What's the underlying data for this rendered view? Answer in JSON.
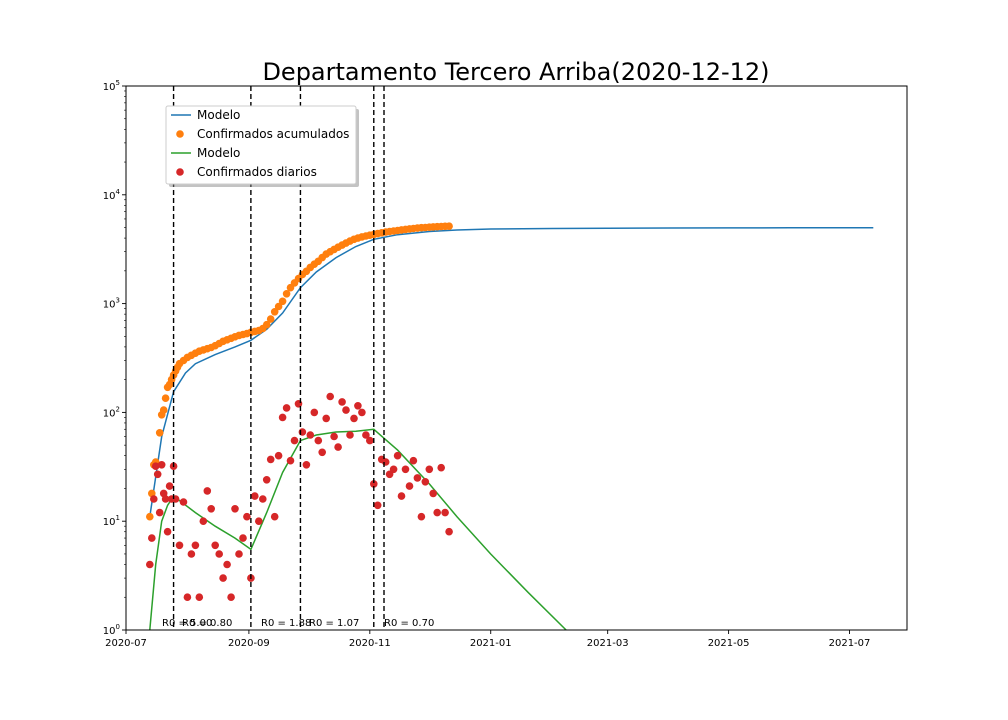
{
  "chart_data": {
    "type": "scatter",
    "title": "Departamento Tercero Arriba(2020-12-12)",
    "xlabel": "",
    "ylabel": "",
    "y_scale": "log",
    "ylim": [
      1,
      100000
    ],
    "xlim": [
      "2020-07-01",
      "2021-07-30"
    ],
    "x_tick_labels": [
      "2020-07",
      "2020-09",
      "2020-11",
      "2021-01",
      "2021-03",
      "2021-05",
      "2021-07"
    ],
    "x_tick_dates": [
      "2020-07-01",
      "2020-09-01",
      "2020-11-01",
      "2021-01-01",
      "2021-03-01",
      "2021-05-01",
      "2021-07-01"
    ],
    "y_tick_values": [
      1,
      10,
      100,
      1000,
      10000,
      100000
    ],
    "y_tick_labels": [
      {
        "base": "10",
        "exp": "0"
      },
      {
        "base": "10",
        "exp": "1"
      },
      {
        "base": "10",
        "exp": "2"
      },
      {
        "base": "10",
        "exp": "3"
      },
      {
        "base": "10",
        "exp": "4"
      },
      {
        "base": "10",
        "exp": "5"
      }
    ],
    "grid": false,
    "legend_position": "upper-left",
    "vlines": [
      {
        "x": "2020-07-25",
        "label": "R0 = 5.00"
      },
      {
        "x": "2020-09-02",
        "label": "R0 = 0.80"
      },
      {
        "x": "2020-09-27",
        "label": "R0 = 1.88"
      },
      {
        "x": "2020-11-03",
        "label": "R0 = 1.07"
      },
      {
        "x": "",
        "label": "R0 = 0.70"
      }
    ],
    "series": [
      {
        "name": "Modelo",
        "kind": "line",
        "color": "#1f77b4",
        "x": [
          "2020-07-13",
          "2020-07-19",
          "2020-07-25",
          "2020-07-31",
          "2020-08-05",
          "2020-08-15",
          "2020-08-25",
          "2020-09-02",
          "2020-09-10",
          "2020-09-18",
          "2020-09-27",
          "2020-10-05",
          "2020-10-15",
          "2020-10-25",
          "2020-11-03",
          "2020-11-15",
          "2020-12-01",
          "2020-12-15",
          "2021-01-01",
          "2021-02-01",
          "2021-03-01",
          "2021-04-01",
          "2021-05-01",
          "2021-06-01",
          "2021-07-13"
        ],
        "y": [
          11,
          60,
          155,
          230,
          280,
          340,
          400,
          460,
          580,
          820,
          1400,
          1950,
          2650,
          3350,
          3900,
          4300,
          4600,
          4750,
          4850,
          4900,
          4930,
          4950,
          4960,
          4970,
          4975
        ]
      },
      {
        "name": "Confirmados acumulados",
        "kind": "scatter",
        "color": "#ff7f0e",
        "x": [
          "2020-07-13",
          "2020-07-14",
          "2020-07-15",
          "2020-07-16",
          "2020-07-18",
          "2020-07-19",
          "2020-07-20",
          "2020-07-21",
          "2020-07-22",
          "2020-07-23",
          "2020-07-24",
          "2020-07-25",
          "2020-07-26",
          "2020-07-27",
          "2020-07-28",
          "2020-07-30",
          "2020-08-01",
          "2020-08-03",
          "2020-08-05",
          "2020-08-07",
          "2020-08-09",
          "2020-08-11",
          "2020-08-13",
          "2020-08-15",
          "2020-08-17",
          "2020-08-19",
          "2020-08-21",
          "2020-08-23",
          "2020-08-25",
          "2020-08-27",
          "2020-08-29",
          "2020-08-31",
          "2020-09-02",
          "2020-09-04",
          "2020-09-06",
          "2020-09-08",
          "2020-09-10",
          "2020-09-12",
          "2020-09-14",
          "2020-09-16",
          "2020-09-18",
          "2020-09-20",
          "2020-09-22",
          "2020-09-24",
          "2020-09-26",
          "2020-09-28",
          "2020-09-30",
          "2020-10-02",
          "2020-10-04",
          "2020-10-06",
          "2020-10-08",
          "2020-10-10",
          "2020-10-12",
          "2020-10-14",
          "2020-10-16",
          "2020-10-18",
          "2020-10-20",
          "2020-10-22",
          "2020-10-24",
          "2020-10-26",
          "2020-10-28",
          "2020-10-30",
          "2020-11-01",
          "2020-11-03",
          "2020-11-05",
          "2020-11-07",
          "2020-11-09",
          "2020-11-11",
          "2020-11-13",
          "2020-11-15",
          "2020-11-17",
          "2020-11-19",
          "2020-11-21",
          "2020-11-23",
          "2020-11-25",
          "2020-11-27",
          "2020-11-29",
          "2020-12-01",
          "2020-12-03",
          "2020-12-05",
          "2020-12-07",
          "2020-12-09",
          "2020-12-11"
        ],
        "y": [
          11,
          18,
          33,
          35,
          65,
          95,
          105,
          135,
          170,
          180,
          200,
          220,
          240,
          260,
          280,
          300,
          320,
          335,
          350,
          365,
          375,
          385,
          395,
          410,
          430,
          450,
          465,
          480,
          495,
          510,
          520,
          530,
          545,
          555,
          565,
          590,
          640,
          720,
          840,
          940,
          1050,
          1230,
          1400,
          1550,
          1700,
          1850,
          1980,
          2150,
          2300,
          2450,
          2650,
          2850,
          3000,
          3150,
          3300,
          3450,
          3600,
          3750,
          3900,
          4000,
          4100,
          4180,
          4250,
          4330,
          4400,
          4470,
          4540,
          4600,
          4650,
          4700,
          4760,
          4810,
          4860,
          4900,
          4940,
          4980,
          5010,
          5040,
          5070,
          5090,
          5110,
          5130,
          5150
        ]
      },
      {
        "name": "Modelo",
        "kind": "line",
        "color": "#2ca02c",
        "x": [
          "2020-07-13",
          "2020-07-16",
          "2020-07-19",
          "2020-07-22",
          "2020-07-25",
          "2020-08-05",
          "2020-08-15",
          "2020-08-25",
          "2020-09-02",
          "2020-09-10",
          "2020-09-18",
          "2020-09-27",
          "2020-10-05",
          "2020-10-15",
          "2020-10-25",
          "2020-11-03",
          "2020-11-15",
          "2020-12-01",
          "2020-12-15",
          "2021-01-01",
          "2021-01-20",
          "2021-02-08"
        ],
        "y": [
          1,
          4,
          10,
          14,
          17,
          12,
          9,
          7,
          5.5,
          12,
          28,
          55,
          62,
          66,
          67,
          70,
          45,
          22,
          11,
          5,
          2.2,
          1
        ]
      },
      {
        "name": "Confirmados diarios",
        "kind": "scatter",
        "color": "#d62728",
        "x": [
          "2020-07-13",
          "2020-07-14",
          "2020-07-15",
          "2020-07-16",
          "2020-07-17",
          "2020-07-18",
          "2020-07-19",
          "2020-07-20",
          "2020-07-21",
          "2020-07-22",
          "2020-07-23",
          "2020-07-24",
          "2020-07-25",
          "2020-07-26",
          "2020-07-28",
          "2020-07-30",
          "2020-08-01",
          "2020-08-03",
          "2020-08-05",
          "2020-08-07",
          "2020-08-09",
          "2020-08-11",
          "2020-08-13",
          "2020-08-15",
          "2020-08-17",
          "2020-08-19",
          "2020-08-21",
          "2020-08-23",
          "2020-08-25",
          "2020-08-27",
          "2020-08-29",
          "2020-08-31",
          "2020-09-02",
          "2020-09-04",
          "2020-09-06",
          "2020-09-08",
          "2020-09-10",
          "2020-09-12",
          "2020-09-14",
          "2020-09-16",
          "2020-09-18",
          "2020-09-20",
          "2020-09-22",
          "2020-09-24",
          "2020-09-26",
          "2020-09-28",
          "2020-09-30",
          "2020-10-02",
          "2020-10-04",
          "2020-10-06",
          "2020-10-08",
          "2020-10-10",
          "2020-10-12",
          "2020-10-14",
          "2020-10-16",
          "2020-10-18",
          "2020-10-20",
          "2020-10-22",
          "2020-10-24",
          "2020-10-26",
          "2020-10-28",
          "2020-10-30",
          "2020-11-01",
          "2020-11-03",
          "2020-11-05",
          "2020-11-07",
          "2020-11-09",
          "2020-11-11",
          "2020-11-13",
          "2020-11-15",
          "2020-11-17",
          "2020-11-19",
          "2020-11-21",
          "2020-11-23",
          "2020-11-25",
          "2020-11-27",
          "2020-11-29",
          "2020-12-01",
          "2020-12-03",
          "2020-12-05",
          "2020-12-07",
          "2020-12-09",
          "2020-12-11"
        ],
        "y": [
          4,
          7,
          16,
          32,
          27,
          12,
          33,
          18,
          16,
          8,
          21,
          16,
          32,
          16,
          6,
          15,
          2,
          5,
          6,
          2,
          10,
          19,
          13,
          6,
          5,
          3,
          4,
          2,
          13,
          5,
          7,
          11,
          3,
          17,
          10,
          16,
          24,
          37,
          11,
          40,
          90,
          110,
          36,
          55,
          120,
          66,
          33,
          62,
          100,
          55,
          43,
          88,
          140,
          60,
          48,
          125,
          105,
          62,
          88,
          115,
          100,
          62,
          55,
          22,
          14,
          37,
          35,
          27,
          30,
          40,
          17,
          30,
          21,
          36,
          25,
          11,
          23,
          30,
          18,
          12,
          31,
          12,
          8
        ]
      }
    ],
    "legend": [
      "Modelo",
      "Confirmados acumulados",
      "Modelo",
      "Confirmados diarios"
    ]
  }
}
